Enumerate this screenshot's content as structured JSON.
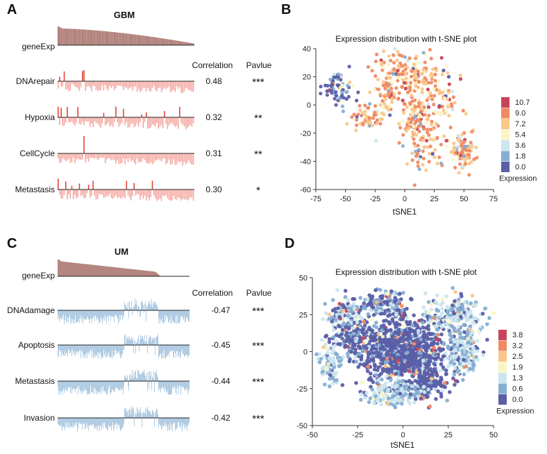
{
  "chart_data": [
    {
      "panel": "A",
      "type": "bar",
      "title": "GBM",
      "gene_label": "geneExp",
      "correlation_header": "Correlation",
      "pvalue_header": "Pavlue",
      "gene_color": "#a8746c",
      "positive_color": "#e03c31",
      "negative_color": "#f4a39c",
      "rows": [
        {
          "name": "DNArepair",
          "correlation": "0.48",
          "stars": "***"
        },
        {
          "name": "Hypoxia",
          "correlation": "0.32",
          "stars": "**"
        },
        {
          "name": "CellCycle",
          "correlation": "0.31",
          "stars": "**"
        },
        {
          "name": "Metastasis",
          "correlation": "0.30",
          "stars": "*"
        }
      ]
    },
    {
      "panel": "B",
      "type": "scatter",
      "title": "Expression distribution with t-SNE plot",
      "xlabel": "tSNE1",
      "ylabel": "",
      "xlim": [
        -75,
        75
      ],
      "ylim": [
        -60,
        40
      ],
      "xticks": [
        "-75",
        "-50",
        "-25",
        "0",
        "25",
        "50",
        "75"
      ],
      "yticks": [
        "40",
        "20",
        "0",
        "-20",
        "-40",
        "-60"
      ],
      "legend_title": "Expression",
      "legend": [
        "10.7",
        "9.0",
        "7.2",
        "5.4",
        "3.6",
        "1.8",
        "0.0"
      ],
      "legend_colors": [
        "#c8445a",
        "#f08a62",
        "#f9c78a",
        "#fbf5c4",
        "#cbe6ee",
        "#86aed2",
        "#5a5fa8"
      ],
      "legend_position": "right"
    },
    {
      "panel": "C",
      "type": "bar",
      "title": "UM",
      "gene_label": "geneExp",
      "correlation_header": "Correlation",
      "pvalue_header": "Pavlue",
      "gene_color": "#b3867f",
      "bar_color": "#a9c7e0",
      "rows": [
        {
          "name": "DNAdamage",
          "correlation": "-0.47",
          "stars": "***"
        },
        {
          "name": "Apoptosis",
          "correlation": "-0.45",
          "stars": "***"
        },
        {
          "name": "Metastasis",
          "correlation": "-0.44",
          "stars": "***"
        },
        {
          "name": "Invasion",
          "correlation": "-0.42",
          "stars": "***"
        }
      ]
    },
    {
      "panel": "D",
      "type": "scatter",
      "title": "Expression distribution with t-SNE plot",
      "xlabel": "tSNE1",
      "ylabel": "",
      "xlim": [
        -50,
        50
      ],
      "ylim": [
        -50,
        50
      ],
      "xticks": [
        "-50",
        "-25",
        "0",
        "25",
        "50"
      ],
      "yticks": [
        "50",
        "25",
        "0",
        "-25",
        "-50"
      ],
      "legend_title": "Expression",
      "legend": [
        "3.8",
        "3.2",
        "2.5",
        "1.9",
        "1.3",
        "0.6",
        "0.0"
      ],
      "legend_colors": [
        "#c8445a",
        "#f08a62",
        "#f9c78a",
        "#fbf5c4",
        "#cbe6ee",
        "#86aed2",
        "#5a5fa8"
      ],
      "legend_position": "right"
    }
  ]
}
